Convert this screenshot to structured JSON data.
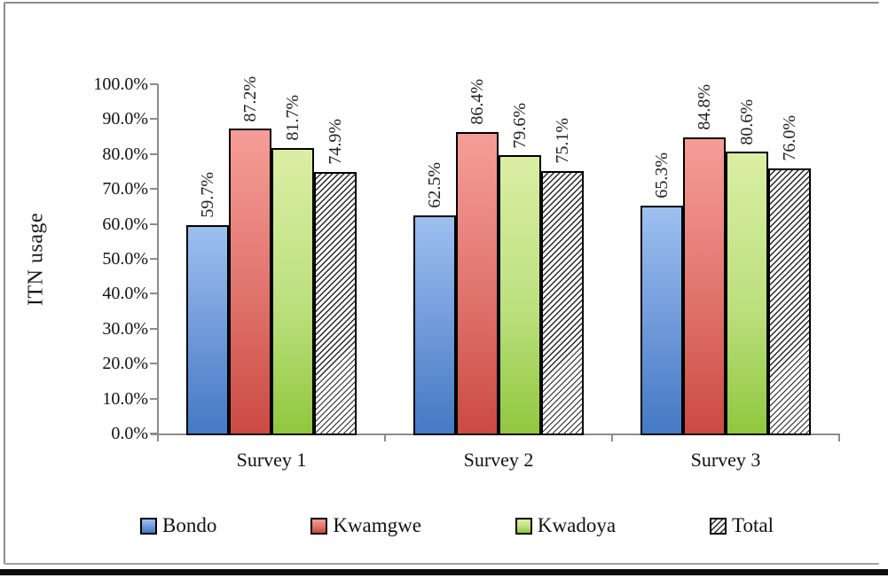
{
  "chart_data": {
    "type": "bar",
    "title": "",
    "ylabel": "ITN usage",
    "xlabel": "",
    "categories": [
      "Survey 1",
      "Survey 2",
      "Survey 3"
    ],
    "series": [
      {
        "name": "Bondo",
        "values": [
          59.7,
          62.5,
          65.3
        ],
        "fill": {
          "type": "gradient",
          "top": "#9DC0F0",
          "mid": "#6D97D8",
          "bottom": "#4479C4"
        }
      },
      {
        "name": "Kwamgwe",
        "values": [
          87.2,
          86.4,
          84.8
        ],
        "fill": {
          "type": "gradient",
          "top": "#F69D97",
          "mid": "#DF736C",
          "bottom": "#CB4A42"
        }
      },
      {
        "name": "Kwadoya",
        "values": [
          81.7,
          79.6,
          80.6
        ],
        "fill": {
          "type": "gradient",
          "top": "#DBEEA4",
          "mid": "#BCE07E",
          "bottom": "#90C73E"
        }
      },
      {
        "name": "Total",
        "values": [
          74.9,
          75.1,
          76.0
        ],
        "fill": {
          "type": "hatch",
          "background": "#FFFFFF",
          "line": "#262626"
        }
      }
    ],
    "data_labels": {
      "rotation": -90,
      "shown": [
        [
          "59.7%",
          "87.2%",
          "81.7%",
          "74.9%"
        ],
        [
          "62.5%",
          "86.4%",
          "79.6%",
          "75.1%"
        ],
        [
          "65.3%",
          "84.8%",
          "80.6%",
          "76.0%"
        ]
      ]
    },
    "ylim": [
      0,
      100
    ],
    "ytick_step": 10,
    "ytick_labels": [
      "0.0%",
      "10.0%",
      "20.0%",
      "30.0%",
      "40.0%",
      "50.0%",
      "60.0%",
      "70.0%",
      "80.0%",
      "90.0%",
      "100.0%"
    ],
    "legend": {
      "position": "bottom",
      "entries": [
        "Bondo",
        "Kwamgwe",
        "Kwadoya",
        "Total"
      ]
    },
    "grid": false,
    "colors": {
      "axis": "#8C8C8C",
      "text": "#111111",
      "frame_border": "#8C8C8C",
      "bottom_rule": "#0B0B0B",
      "bar_outline": "#000000"
    }
  }
}
